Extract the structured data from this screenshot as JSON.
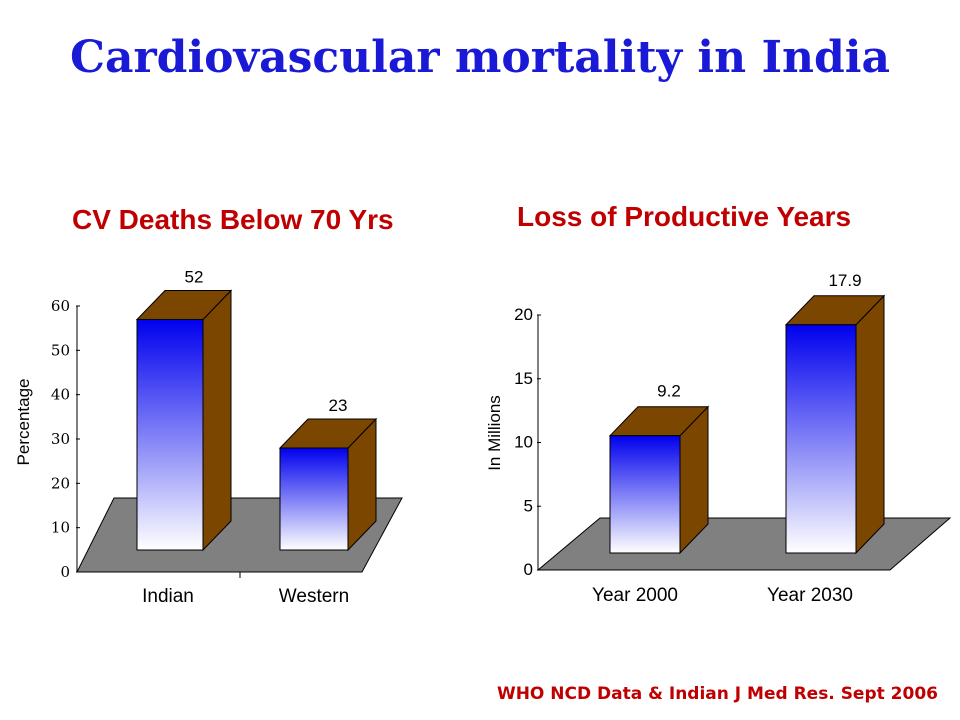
{
  "slide": {
    "title": "Cardiovascular mortality in India",
    "source": "WHO NCD Data & Indian J Med Res. Sept 2006"
  },
  "colors": {
    "title": "#1a1ad6",
    "chart_title": "#c00000",
    "bar_top": "#0000ee",
    "bar_bottom": "#ffffff",
    "bar_side": "#7a4600",
    "floor": "#808080"
  },
  "chart_data": [
    {
      "type": "bar",
      "title": "CV Deaths Below 70 Yrs",
      "ylabel": "Percentage",
      "xlabel": "",
      "categories": [
        "Indian",
        "Western"
      ],
      "values": [
        52,
        23
      ],
      "data_labels": [
        "52",
        "23"
      ],
      "ylim": [
        0,
        60
      ],
      "yticks": [
        "0",
        "10",
        "20",
        "30",
        "40",
        "50",
        "60"
      ],
      "grid": false,
      "three_d": true
    },
    {
      "type": "bar",
      "title": "Loss of Productive Years",
      "ylabel": "In Millions",
      "xlabel": "",
      "categories": [
        "Year 2000",
        "Year 2030"
      ],
      "values": [
        9.2,
        17.9
      ],
      "data_labels": [
        "9.2",
        "17.9"
      ],
      "ylim": [
        0,
        20
      ],
      "yticks": [
        "0",
        "5",
        "10",
        "15",
        "20"
      ],
      "grid": false,
      "three_d": true
    }
  ]
}
